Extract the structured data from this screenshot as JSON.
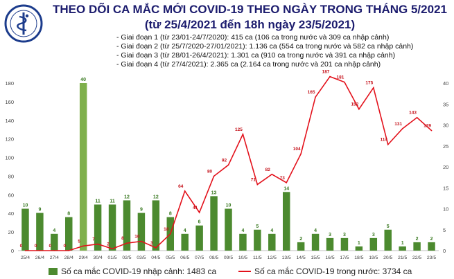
{
  "header": {
    "logo_text": "BỘ Y TẾ",
    "title_line1": "THEO DÕI CA MẮC MỚI COVID-19 THEO NGÀY TRONG THÁNG 5/2021",
    "title_line2": "(từ 25/4/2021 đến 18h ngày 23/5/2021)",
    "stages": [
      "- Giai đoạn 1 (từ 23/01-24/7/2020): 415 ca (106 ca trong nước và 309 ca nhập cảnh)",
      "- Giai đoạn 2 (từ 25/7/2020-27/01/2021): 1.136 ca (554 ca trong nước và 582 ca nhập cảnh)",
      "- Giai đoạn 3 (từ 28/01-26/4/2021): 1.301 ca (910 ca trong nước và 391 ca nhập cảnh)",
      "- Giai đoạn 4 (từ 27/4/2021): 2.365 ca (2.164 ca trong nước và 201 ca nhập cảnh)"
    ]
  },
  "colors": {
    "bar": "#4c8a2f",
    "bar_highlight": "#7fb04c",
    "line": "#e3111b",
    "axis_text": "#444444"
  },
  "chart_data": {
    "type": "bar",
    "categories": [
      "25/4",
      "26/4",
      "27/4",
      "28/4",
      "29/4",
      "30/4",
      "01/5",
      "02/5",
      "03/5",
      "04/5",
      "05/5",
      "06/5",
      "07/5",
      "08/5",
      "09/5",
      "10/5",
      "11/5",
      "12/5",
      "13/5",
      "14/5",
      "15/5",
      "16/5",
      "17/5",
      "18/5",
      "19/5",
      "20/5",
      "21/5",
      "22/5",
      "23/5"
    ],
    "series": [
      {
        "name": "Số ca mắc COVID-19 nhập cảnh: 1483 ca",
        "type": "bar",
        "axis": "right",
        "values": [
          10,
          9,
          4,
          8,
          40,
          11,
          11,
          12,
          9,
          12,
          8,
          4,
          6,
          13,
          10,
          4,
          5,
          4,
          14,
          2,
          4,
          3,
          3,
          1,
          3,
          5,
          1,
          2,
          2
        ]
      },
      {
        "name": "Số ca mắc COVID-19 trong nước: 3734 ca",
        "type": "line",
        "axis": "left",
        "values": [
          0,
          0,
          0,
          0,
          5,
          7,
          2,
          8,
          10,
          3,
          18,
          64,
          41,
          80,
          92,
          125,
          71,
          82,
          73,
          104,
          165,
          187,
          181,
          152,
          175,
          114,
          131,
          143,
          129
        ]
      }
    ],
    "highlight_index": 4,
    "ylim_left": [
      0,
      180
    ],
    "yticks_left": [
      0,
      20,
      40,
      60,
      80,
      100,
      120,
      140,
      160,
      180
    ],
    "ylim_right": [
      0,
      40
    ],
    "yticks_right": [
      0,
      5,
      10,
      15,
      20,
      25,
      30,
      35,
      40
    ],
    "grid": false,
    "legend": "bottom"
  }
}
